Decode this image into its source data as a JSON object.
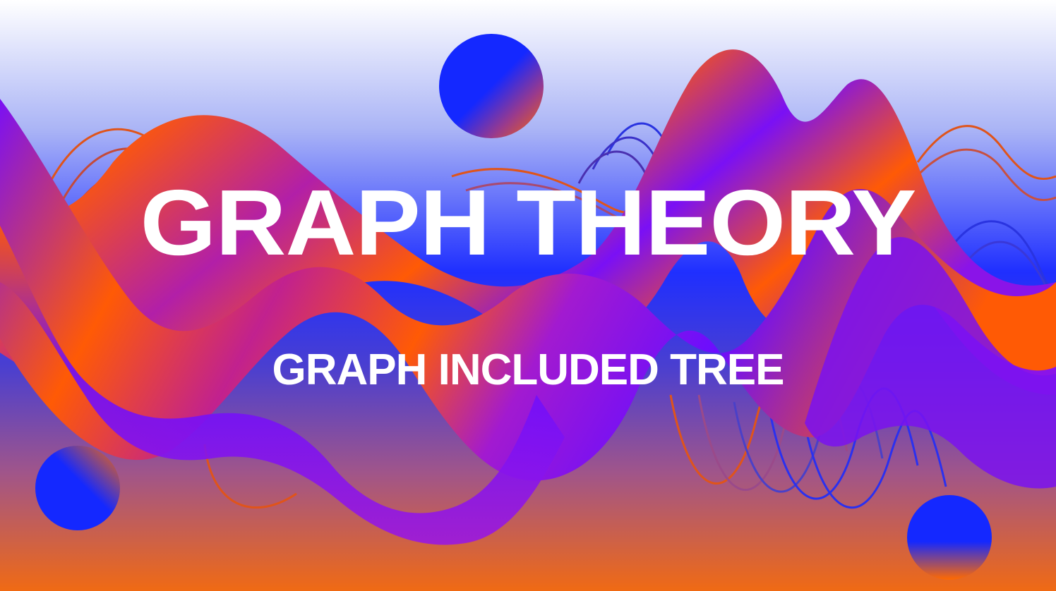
{
  "title": "GRAPH THEORY",
  "subtitle": "GRAPH INCLUDED TREE",
  "colors": {
    "sky_top": "#ffffff",
    "sky_mid": "#8896f3",
    "deep_blue": "#1f2fff",
    "orange": "#ff5a05",
    "violet": "#6a0dff",
    "magenta": "#b21fa8",
    "floor": "#e8721e"
  },
  "decorations": [
    "gradient-sphere",
    "wave-ribbon",
    "spring-coil-lines"
  ]
}
